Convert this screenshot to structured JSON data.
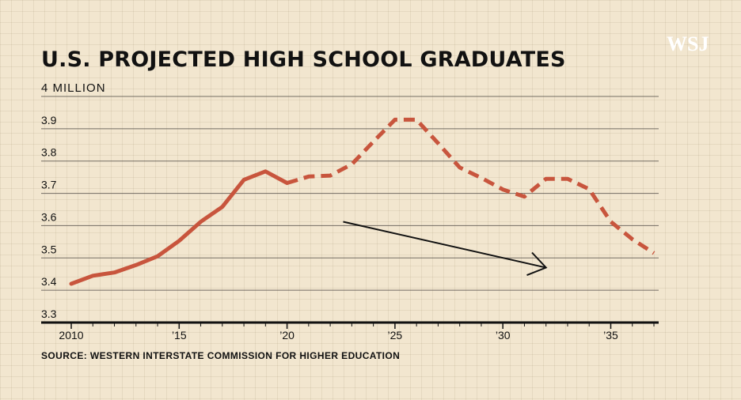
{
  "brand": "WSJ",
  "source": "SOURCE: WESTERN INTERSTATE COMMISSION FOR HIGHER EDUCATION",
  "colors": {
    "background": "#f2e6cf",
    "series": "#c8553d",
    "text": "#111111",
    "grid": "#4a4540"
  },
  "chart_data": {
    "type": "line",
    "title": "U.S. PROJECTED HIGH SCHOOL GRADUATES",
    "unit_label": "4 MILLION",
    "xlabel": "",
    "ylabel": "",
    "ylim": [
      3.3,
      4.0
    ],
    "xlim": [
      2010,
      2037
    ],
    "yticks": [
      "3.3",
      "3.4",
      "3.5",
      "3.6",
      "3.7",
      "3.8",
      "3.9"
    ],
    "xticks": [
      {
        "x": 2010,
        "label": "2010"
      },
      {
        "x": 2015,
        "label": "’15"
      },
      {
        "x": 2020,
        "label": "’20"
      },
      {
        "x": 2025,
        "label": "’25"
      },
      {
        "x": 2030,
        "label": "’30"
      },
      {
        "x": 2035,
        "label": "’35"
      }
    ],
    "grid": true,
    "series": [
      {
        "style": "solid",
        "x": [
          2010,
          2011,
          2012,
          2013,
          2014,
          2015,
          2016,
          2017,
          2018,
          2019,
          2020
        ],
        "y": [
          3.42,
          3.445,
          3.455,
          3.478,
          3.505,
          3.553,
          3.612,
          3.658,
          3.742,
          3.768,
          3.732
        ]
      },
      {
        "style": "dashed",
        "x": [
          2020,
          2021,
          2022,
          2023,
          2024,
          2025,
          2026,
          2027,
          2028,
          2029,
          2030,
          2031,
          2032,
          2033,
          2034,
          2035,
          2036,
          2037
        ],
        "y": [
          3.732,
          3.752,
          3.755,
          3.79,
          3.86,
          3.928,
          3.928,
          3.855,
          3.78,
          3.748,
          3.712,
          3.69,
          3.745,
          3.745,
          3.713,
          3.612,
          3.558,
          3.515
        ]
      }
    ],
    "annotations": [
      {
        "type": "arrow",
        "from": [
          2022.6,
          3.612
        ],
        "to": [
          2032.0,
          3.47
        ]
      }
    ]
  }
}
